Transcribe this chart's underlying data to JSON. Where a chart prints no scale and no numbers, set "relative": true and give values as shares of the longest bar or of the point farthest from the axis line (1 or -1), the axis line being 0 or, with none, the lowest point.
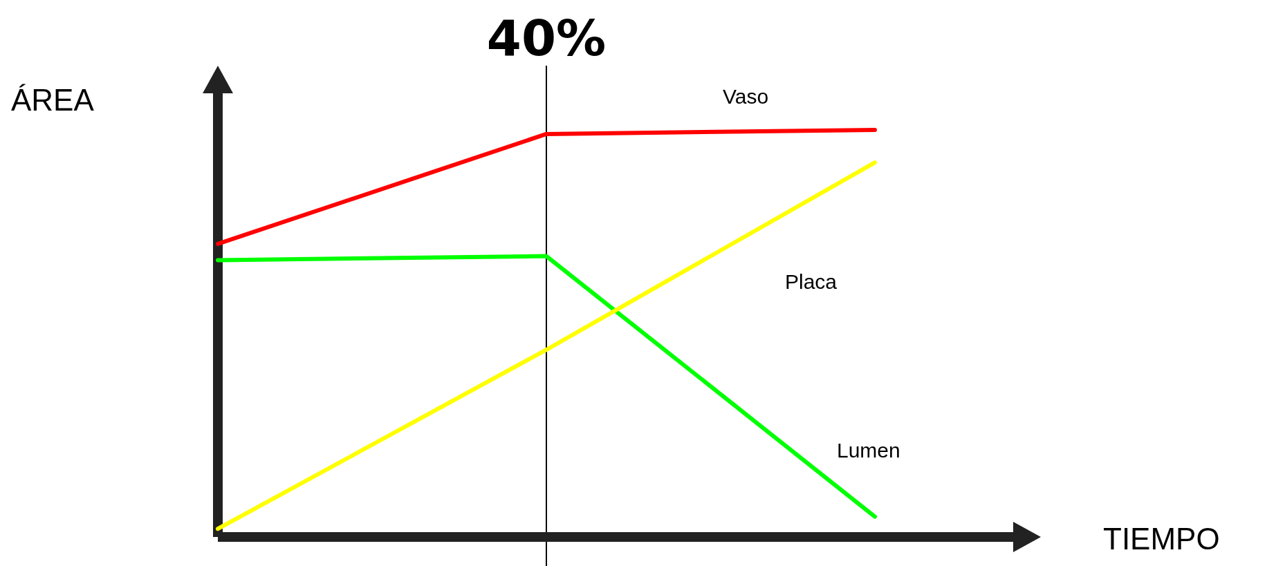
{
  "chart_data": {
    "type": "line",
    "relative": true,
    "xlabel": "TIEMPO",
    "ylabel": "ÁREA",
    "categories": [
      null,
      null,
      null
    ],
    "series": [
      {
        "name": "Vaso",
        "color": "#ff0000",
        "values": [
          0.72,
          0.99,
          1
        ]
      },
      {
        "name": "Lumen",
        "color": "#00ff00",
        "values": [
          0.68,
          0.69,
          0.05
        ]
      },
      {
        "name": "Placa",
        "color": "#ffff00",
        "values": [
          0.02,
          0.46,
          0.92
        ]
      }
    ],
    "annotations": [
      "40%"
    ],
    "marker": "none",
    "line_style": "solid"
  }
}
